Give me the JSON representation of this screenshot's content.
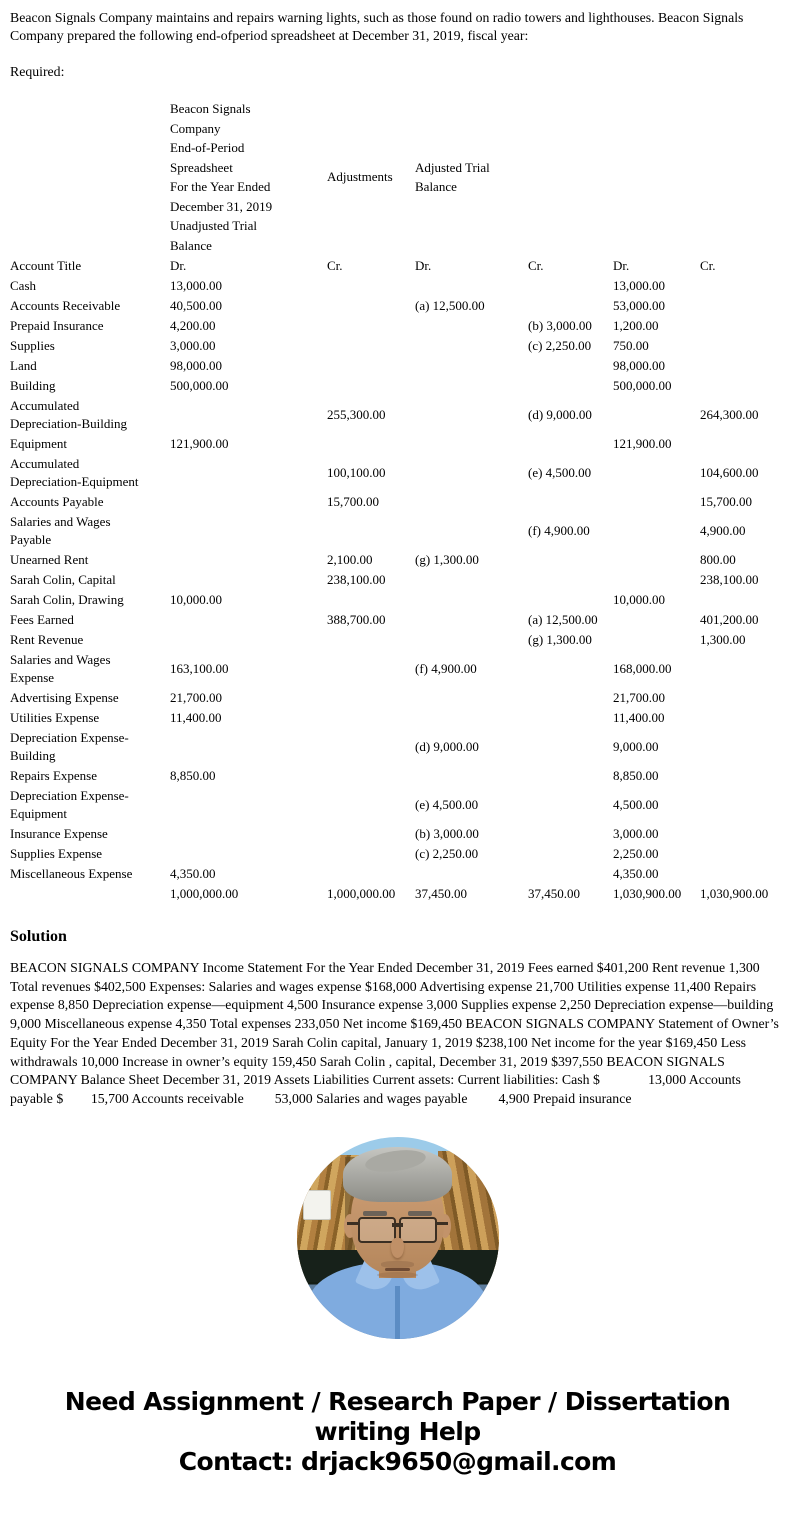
{
  "intro": {
    "paragraph": "Beacon Signals Company maintains and repairs warning lights, such as those found on radio towers and lighthouses. Beacon Signals Company prepared the following end-ofperiod spreadsheet at December 31, 2019, fiscal year:",
    "required": "Required:"
  },
  "spreadsheet": {
    "title_lines": [
      "Beacon Signals Company",
      "End-of-Period Spreadsheet",
      "For the Year Ended December 31, 2019"
    ],
    "group_labels": {
      "unadjusted": "Unadjusted Trial Balance",
      "adjustments": "Adjustments",
      "adjusted": "Adjusted Trial Balance"
    },
    "columns": [
      "Account Title",
      "Dr.",
      "Cr.",
      "Dr.",
      "Cr.",
      "Dr.",
      "Cr."
    ],
    "rows": [
      [
        "Cash",
        "13,000.00",
        "",
        "",
        "",
        "13,000.00",
        ""
      ],
      [
        "Accounts Receivable",
        "40,500.00",
        "",
        "(a) 12,500.00",
        "",
        "53,000.00",
        ""
      ],
      [
        "Prepaid Insurance",
        "4,200.00",
        "",
        "",
        "(b) 3,000.00",
        "1,200.00",
        ""
      ],
      [
        "Supplies",
        "3,000.00",
        "",
        "",
        "(c) 2,250.00",
        "750.00",
        ""
      ],
      [
        "Land",
        "98,000.00",
        "",
        "",
        "",
        "98,000.00",
        ""
      ],
      [
        "Building",
        "500,000.00",
        "",
        "",
        "",
        "500,000.00",
        ""
      ],
      [
        "Accumulated Depreciation-Building",
        "",
        "255,300.00",
        "",
        "(d) 9,000.00",
        "",
        "264,300.00"
      ],
      [
        "Equipment",
        "121,900.00",
        "",
        "",
        "",
        "121,900.00",
        ""
      ],
      [
        "Accumulated Depreciation-Equipment",
        "",
        "100,100.00",
        "",
        "(e) 4,500.00",
        "",
        "104,600.00"
      ],
      [
        "Accounts Payable",
        "",
        "15,700.00",
        "",
        "",
        "",
        "15,700.00"
      ],
      [
        "Salaries and Wages Payable",
        "",
        "",
        "",
        "(f) 4,900.00",
        "",
        "4,900.00"
      ],
      [
        "Unearned Rent",
        "",
        "2,100.00",
        "(g) 1,300.00",
        "",
        "",
        "800.00"
      ],
      [
        "Sarah Colin, Capital",
        "",
        "238,100.00",
        "",
        "",
        "",
        "238,100.00"
      ],
      [
        "Sarah Colin, Drawing",
        "10,000.00",
        "",
        "",
        "",
        "10,000.00",
        ""
      ],
      [
        "Fees Earned",
        "",
        "388,700.00",
        "",
        "(a) 12,500.00",
        "",
        "401,200.00"
      ],
      [
        "Rent Revenue",
        "",
        "",
        "",
        "(g) 1,300.00",
        "",
        "1,300.00"
      ],
      [
        "Salaries and Wages Expense",
        "163,100.00",
        "",
        "(f) 4,900.00",
        "",
        "168,000.00",
        ""
      ],
      [
        "Advertising Expense",
        "21,700.00",
        "",
        "",
        "",
        "21,700.00",
        ""
      ],
      [
        "Utilities Expense",
        "11,400.00",
        "",
        "",
        "",
        "11,400.00",
        ""
      ],
      [
        "Depreciation Expense-Building",
        "",
        "",
        "(d) 9,000.00",
        "",
        "9,000.00",
        ""
      ],
      [
        "Repairs Expense",
        "8,850.00",
        "",
        "",
        "",
        "8,850.00",
        ""
      ],
      [
        "Depreciation Expense-Equipment",
        "",
        "",
        "(e) 4,500.00",
        "",
        "4,500.00",
        ""
      ],
      [
        "Insurance Expense",
        "",
        "",
        "(b) 3,000.00",
        "",
        "3,000.00",
        ""
      ],
      [
        "Supplies Expense",
        "",
        "",
        "(c) 2,250.00",
        "",
        "2,250.00",
        ""
      ],
      [
        "Miscellaneous Expense",
        "4,350.00",
        "",
        "",
        "",
        "4,350.00",
        ""
      ],
      [
        "",
        "1,000,000.00",
        "1,000,000.00",
        "37,450.00",
        "37,450.00",
        "1,030,900.00",
        "1,030,900.00"
      ]
    ]
  },
  "solution": {
    "heading": "Solution",
    "body": "BEACON SIGNALS COMPANY Income Statement For the Year Ended December 31, 2019 Fees earned $401,200 Rent revenue 1,300 Total revenues $402,500 Expenses: Salaries and wages expense $168,000 Advertising expense 21,700 Utilities expense 11,400 Repairs expense 8,850 Depreciation expense—equipment 4,500 Insurance expense 3,000 Supplies expense 2,250 Depreciation expense—building 9,000 Miscellaneous expense 4,350 Total expenses 233,050 Net income $169,450 BEACON SIGNALS COMPANY Statement of Owner’s Equity For the Year Ended December 31, 2019 Sarah Colin capital, January 1, 2019 $238,100 Net income for the year $169,450 Less withdrawals 10,000 Increase in owner’s equity 159,450 Sarah Colin , capital, December 31, 2019 $397,550 BEACON SIGNALS COMPANY Balance Sheet December 31, 2019 Assets Liabilities Current assets: Current liabilities: Cash $              13,000 Accounts payable $        15,700 Accounts receivable         53,000 Salaries and wages payable         4,900 Prepaid insurance"
  },
  "photo": {
    "name": "tutor-portrait-photo",
    "colors": {
      "sky": "#9ccbe9",
      "wood": "#b28040",
      "shirt": "#7fabdf",
      "skin": "#cfa077",
      "hair": "#c6c6c1"
    }
  },
  "footer": {
    "line1": "Need Assignment / Research Paper / Dissertation",
    "line2": "writing Help",
    "line3": "Contact: drjack9650@gmail.com"
  }
}
